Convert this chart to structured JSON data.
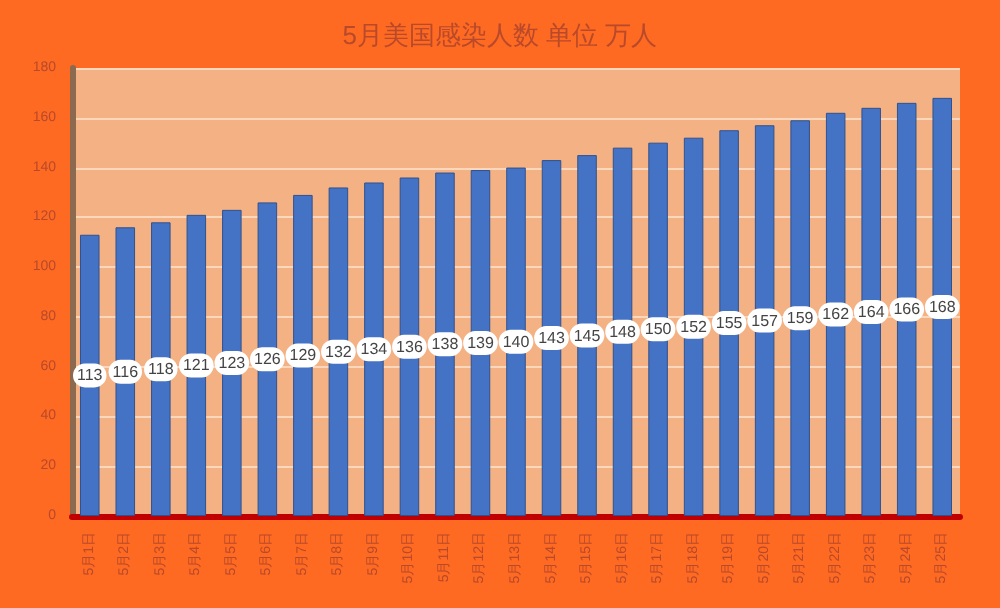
{
  "chart_data": {
    "type": "bar",
    "title": "5月美国感染人数 单位 万人",
    "categories": [
      "5月1日",
      "5月2日",
      "5月3日",
      "5月4日",
      "5月5日",
      "5月6日",
      "5月7日",
      "5月8日",
      "5月9日",
      "5月10日",
      "5月11日",
      "5月12日",
      "5月13日",
      "5月14日",
      "5月15日",
      "5月16日",
      "5月17日",
      "5月18日",
      "5月19日",
      "5月20日",
      "5月21日",
      "5月22日",
      "5月23日",
      "5月24日",
      "5月25日"
    ],
    "values": [
      113,
      116,
      118,
      121,
      123,
      126,
      129,
      132,
      134,
      136,
      138,
      139,
      140,
      143,
      145,
      148,
      150,
      152,
      155,
      157,
      159,
      162,
      164,
      166,
      168
    ],
    "color": "#4472c4",
    "ylim": [
      0,
      180
    ],
    "yticks": [
      0,
      20,
      40,
      60,
      80,
      100,
      120,
      140,
      160,
      180
    ],
    "grid": true,
    "data_labels": true
  }
}
